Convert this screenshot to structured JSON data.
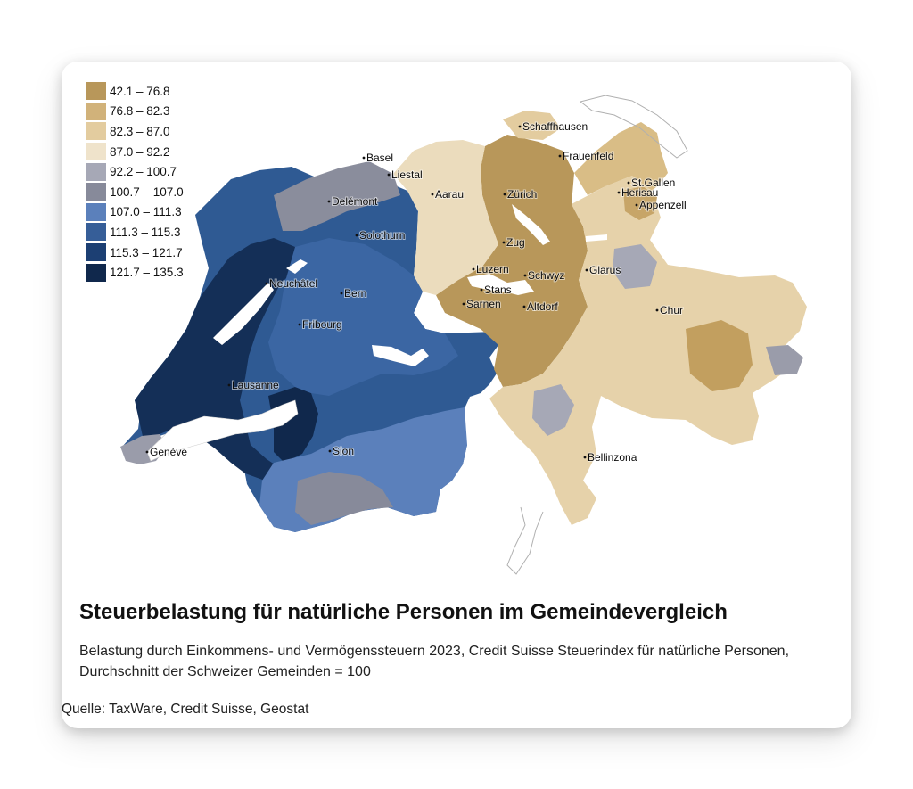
{
  "map": {
    "legend": [
      {
        "label": "42.1 – 76.8",
        "color": "#b8975a"
      },
      {
        "label": "76.8 – 82.3",
        "color": "#d1b27a"
      },
      {
        "label": "82.3 – 87.0",
        "color": "#e3cc9f"
      },
      {
        "label": "87.0 – 92.2",
        "color": "#efe3cb"
      },
      {
        "label": "92.2 – 100.7",
        "color": "#a6a8b6"
      },
      {
        "label": "100.7 – 107.0",
        "color": "#878a9a"
      },
      {
        "label": "107.0 – 111.3",
        "color": "#5b80bb"
      },
      {
        "label": "111.3 – 115.3",
        "color": "#365e98"
      },
      {
        "label": "115.3 – 121.7",
        "color": "#1c3f73"
      },
      {
        "label": "121.7 – 135.3",
        "color": "#10284c"
      }
    ],
    "cities": [
      {
        "name": "Schaffhausen"
      },
      {
        "name": "Frauenfeld"
      },
      {
        "name": "Basel"
      },
      {
        "name": "Liestal"
      },
      {
        "name": "St.Gallen"
      },
      {
        "name": "Herisau"
      },
      {
        "name": "Aarau"
      },
      {
        "name": "Zürich"
      },
      {
        "name": "Appenzell"
      },
      {
        "name": "Delémont"
      },
      {
        "name": "Solothurn"
      },
      {
        "name": "Zug"
      },
      {
        "name": "Luzern"
      },
      {
        "name": "Glarus"
      },
      {
        "name": "Schwyz"
      },
      {
        "name": "Neuchâtel"
      },
      {
        "name": "Stans"
      },
      {
        "name": "Bern"
      },
      {
        "name": "Sarnen"
      },
      {
        "name": "Altdorf"
      },
      {
        "name": "Chur"
      },
      {
        "name": "Fribourg"
      },
      {
        "name": "Lausanne"
      },
      {
        "name": "Sion"
      },
      {
        "name": "Genève"
      },
      {
        "name": "Bellinzona"
      }
    ]
  },
  "title": "Steuerbelastung für natürliche Personen im Gemeindevergleich",
  "subtitle": "Belastung durch Einkommens- und Vermögenssteuern 2023, Credit Suisse Steuerindex für natürliche Personen, Durchschnitt der Schweizer Gemeinden = 100",
  "source": "Quelle: TaxWare, Credit Suisse, Geostat"
}
